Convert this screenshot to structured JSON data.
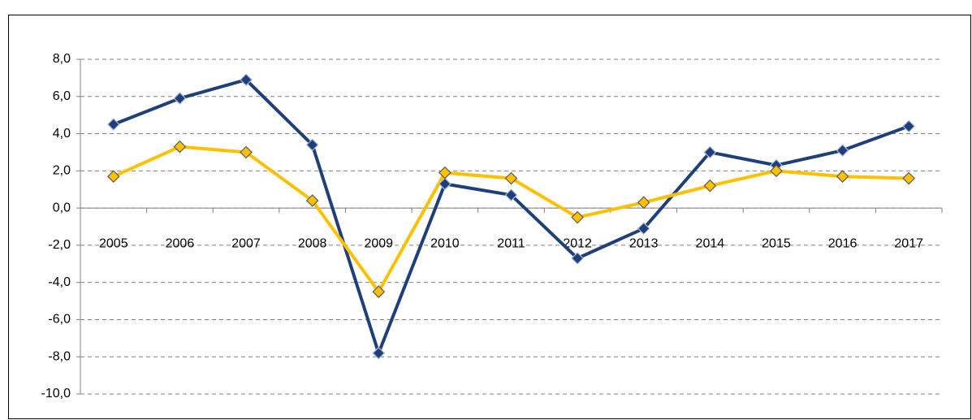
{
  "chart_data": {
    "type": "line",
    "categories": [
      "2005",
      "2006",
      "2007",
      "2008",
      "2009",
      "2010",
      "2011",
      "2012",
      "2013",
      "2014",
      "2015",
      "2016",
      "2017"
    ],
    "series": [
      {
        "color": "#1f3f7a",
        "values": [
          4.5,
          5.9,
          6.9,
          3.4,
          -7.8,
          1.3,
          0.7,
          -2.7,
          -1.1,
          3.0,
          2.3,
          3.1,
          4.4
        ]
      },
      {
        "color": "#ffc000",
        "values": [
          1.7,
          3.3,
          3.0,
          0.4,
          -4.5,
          1.9,
          1.6,
          -0.5,
          0.3,
          1.2,
          2.0,
          1.7,
          1.6
        ]
      }
    ],
    "ylim": [
      -10,
      8
    ],
    "yticks": [
      {
        "value": -10,
        "label": "-10,0"
      },
      {
        "value": -8,
        "label": "-8,0"
      },
      {
        "value": -6,
        "label": "-6,0"
      },
      {
        "value": -4,
        "label": "-4,0"
      },
      {
        "value": -2,
        "label": "-2,0"
      },
      {
        "value": 0,
        "label": "0,0"
      },
      {
        "value": 2,
        "label": "2,0"
      },
      {
        "value": 4,
        "label": "4,0"
      },
      {
        "value": 6,
        "label": "6,0"
      },
      {
        "value": 8,
        "label": "8,0"
      }
    ],
    "grid": true
  }
}
